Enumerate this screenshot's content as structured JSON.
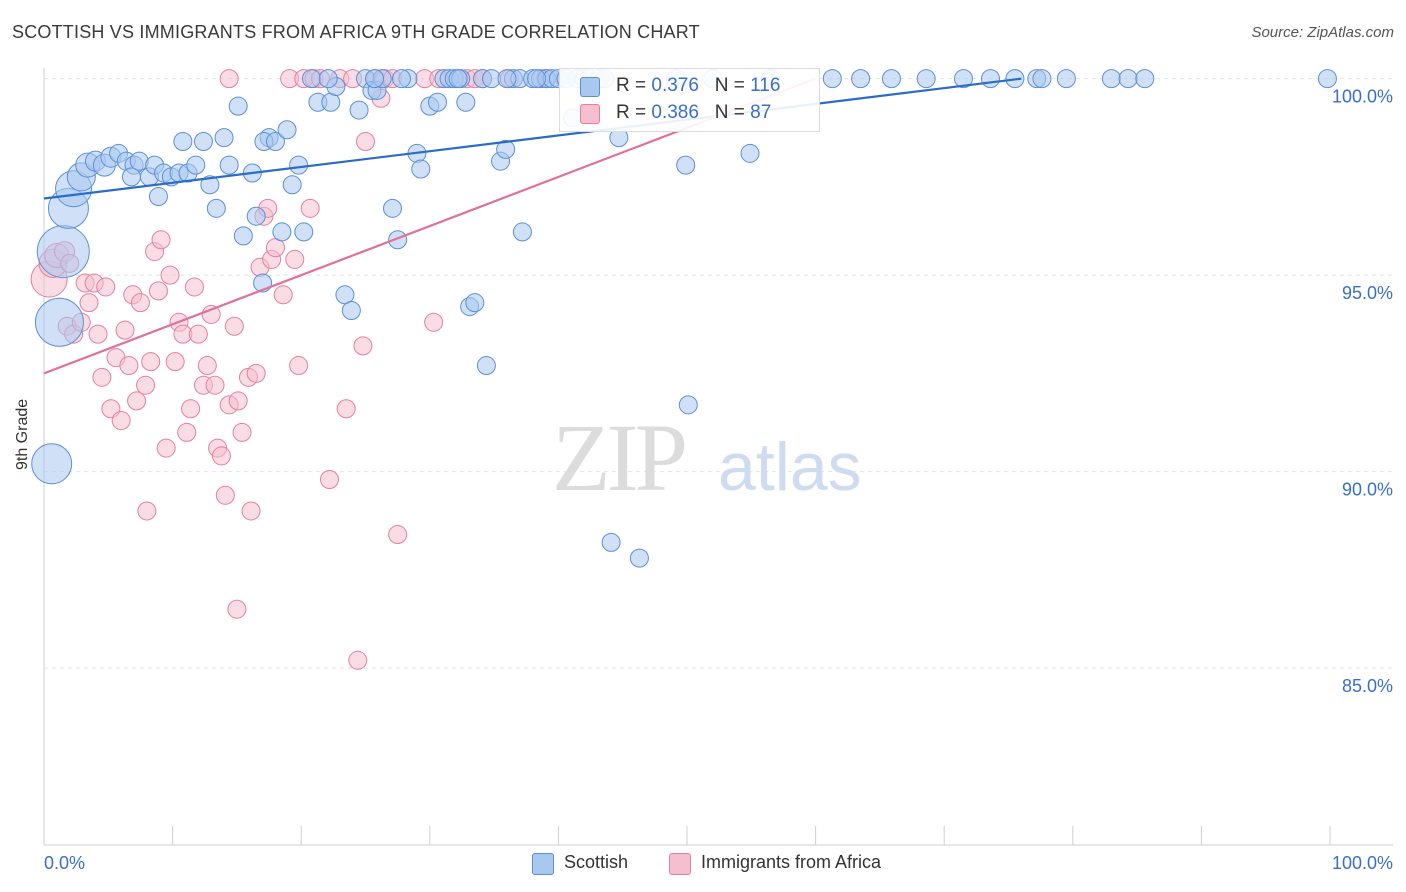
{
  "title": "SCOTTISH VS IMMIGRANTS FROM AFRICA 9TH GRADE CORRELATION CHART",
  "source": "Source: ZipAtlas.com",
  "watermark": {
    "zip": "ZIP",
    "atlas": "atlas"
  },
  "colors": {
    "scottish_fill": "#a9c8f0",
    "scottish_stroke": "#5b8fd6",
    "scottish_line": "#2a6cc9",
    "africa_fill": "#f6bfd0",
    "africa_stroke": "#e37fa1",
    "africa_line": "#e0719a",
    "tick_text": "#3a6fc8",
    "grid": "#e2e2e2"
  },
  "legend": {
    "rows": [
      {
        "r_label": "R = ",
        "r_value": "0.376",
        "n_label": "N = ",
        "n_value": "116"
      },
      {
        "r_label": "R = ",
        "r_value": "0.386",
        "n_label": "N = ",
        "n_value": "87"
      }
    ]
  },
  "bottom_legend": [
    "Scottish",
    "Immigrants from Africa"
  ],
  "chart_data": {
    "type": "scatter",
    "title": "SCOTTISH VS IMMIGRANTS FROM AFRICA 9TH GRADE CORRELATION CHART",
    "xlabel": "",
    "ylabel": "9th Grade",
    "xlim": [
      0,
      100
    ],
    "ylim": [
      80.5,
      100.5
    ],
    "x_tick_labels": [
      "0.0%",
      "100.0%"
    ],
    "y_ticks": [
      {
        "value": 100,
        "label": "100.0%"
      },
      {
        "value": 95,
        "label": "95.0%"
      },
      {
        "value": 90,
        "label": "90.0%"
      },
      {
        "value": 85,
        "label": "85.0%"
      }
    ],
    "grid": true,
    "legend_position": "top-center",
    "series": [
      {
        "name": "Scottish",
        "R": 0.376,
        "N": 116,
        "trend": {
          "x": [
            0,
            76
          ],
          "y": [
            96.95,
            100.0
          ]
        },
        "points": [
          [
            0.6,
            90.2,
            20
          ],
          [
            1.2,
            93.8,
            24
          ],
          [
            1.5,
            95.6,
            26
          ],
          [
            1.9,
            96.7,
            20
          ],
          [
            2.3,
            97.2,
            18
          ],
          [
            2.9,
            97.5,
            14
          ],
          [
            3.4,
            97.8,
            12
          ],
          [
            4.0,
            97.9,
            10
          ],
          [
            4.7,
            97.8,
            11
          ],
          [
            5.2,
            98.0,
            10
          ],
          [
            5.8,
            98.1,
            9
          ],
          [
            6.4,
            97.9,
            9
          ],
          [
            7.0,
            97.8,
            9
          ],
          [
            6.8,
            97.5,
            9
          ],
          [
            7.4,
            97.9,
            9
          ],
          [
            8.2,
            97.5,
            9
          ],
          [
            8.6,
            97.8,
            9
          ],
          [
            9.3,
            97.6,
            9
          ],
          [
            8.9,
            97.0,
            9
          ],
          [
            9.9,
            97.5,
            9
          ],
          [
            10.5,
            97.6,
            9
          ],
          [
            11.2,
            97.6,
            9
          ],
          [
            11.8,
            97.8,
            9
          ],
          [
            10.8,
            98.4,
            9
          ],
          [
            12.4,
            98.4,
            9
          ],
          [
            12.9,
            97.3,
            9
          ],
          [
            13.4,
            96.7,
            9
          ],
          [
            14.0,
            98.5,
            9
          ],
          [
            14.4,
            97.8,
            9
          ],
          [
            15.5,
            96.0,
            9
          ],
          [
            15.1,
            99.3,
            9
          ],
          [
            16.2,
            97.6,
            9
          ],
          [
            16.5,
            96.5,
            9
          ],
          [
            17.5,
            98.5,
            9
          ],
          [
            17.1,
            98.4,
            9
          ],
          [
            17.0,
            94.8,
            9
          ],
          [
            18.0,
            98.4,
            9
          ],
          [
            18.5,
            96.1,
            9
          ],
          [
            18.9,
            98.7,
            9
          ],
          [
            19.3,
            97.3,
            9
          ],
          [
            19.8,
            97.8,
            9
          ],
          [
            20.2,
            96.1,
            9
          ],
          [
            20.8,
            100.0,
            9
          ],
          [
            21.3,
            99.4,
            9
          ],
          [
            22.3,
            99.4,
            9
          ],
          [
            22.7,
            99.8,
            9
          ],
          [
            22.1,
            100.0,
            9
          ],
          [
            23.4,
            94.5,
            9
          ],
          [
            23.9,
            94.1,
            9
          ],
          [
            24.5,
            99.2,
            9
          ],
          [
            25.0,
            100.0,
            9
          ],
          [
            25.5,
            99.7,
            9
          ],
          [
            25.9,
            99.7,
            9
          ],
          [
            26.3,
            100.0,
            9
          ],
          [
            25.7,
            100.0,
            9
          ],
          [
            27.1,
            96.7,
            9
          ],
          [
            27.5,
            95.9,
            9
          ],
          [
            28.3,
            100.0,
            9
          ],
          [
            29.0,
            98.1,
            9
          ],
          [
            29.3,
            97.7,
            9
          ],
          [
            30.0,
            99.3,
            9
          ],
          [
            30.6,
            99.4,
            9
          ],
          [
            31.1,
            100.0,
            9
          ],
          [
            31.5,
            100.0,
            9
          ],
          [
            31.9,
            100.0,
            9
          ],
          [
            32.4,
            100.0,
            9
          ],
          [
            32.8,
            99.4,
            9
          ],
          [
            32.2,
            100.0,
            9
          ],
          [
            33.1,
            94.2,
            9
          ],
          [
            33.5,
            94.3,
            9
          ],
          [
            34.1,
            100.0,
            9
          ],
          [
            34.4,
            92.7,
            9
          ],
          [
            34.8,
            100.0,
            9
          ],
          [
            35.5,
            97.9,
            9
          ],
          [
            35.9,
            98.2,
            9
          ],
          [
            36.5,
            100.0,
            9
          ],
          [
            37.0,
            100.0,
            9
          ],
          [
            37.2,
            96.1,
            9
          ],
          [
            38.0,
            100.0,
            9
          ],
          [
            38.6,
            100.0,
            9
          ],
          [
            39.1,
            100.0,
            9
          ],
          [
            39.5,
            100.0,
            9
          ],
          [
            40.0,
            100.0,
            9
          ],
          [
            40.6,
            100.0,
            9
          ],
          [
            38.3,
            100.0,
            9
          ],
          [
            41.1,
            99.0,
            9
          ],
          [
            41.5,
            100.0,
            9
          ],
          [
            42.0,
            100.0,
            9
          ],
          [
            42.4,
            100.0,
            9
          ],
          [
            43.2,
            100.0,
            9
          ],
          [
            44.1,
            88.2,
            9
          ],
          [
            46.3,
            87.8,
            9
          ],
          [
            44.7,
            98.5,
            9
          ],
          [
            49.1,
            100.0,
            9
          ],
          [
            49.9,
            97.8,
            9
          ],
          [
            50.1,
            91.7,
            9
          ],
          [
            52.0,
            100.0,
            9
          ],
          [
            54.9,
            98.1,
            9
          ],
          [
            56.5,
            100.0,
            9
          ],
          [
            61.3,
            100.0,
            9
          ],
          [
            63.5,
            100.0,
            9
          ],
          [
            65.9,
            100.0,
            9
          ],
          [
            68.6,
            100.0,
            9
          ],
          [
            71.5,
            100.0,
            9
          ],
          [
            73.6,
            100.0,
            9
          ],
          [
            75.5,
            100.0,
            9
          ],
          [
            77.2,
            100.0,
            9
          ],
          [
            77.6,
            100.0,
            9
          ],
          [
            79.5,
            100.0,
            9
          ],
          [
            83.0,
            100.0,
            9
          ],
          [
            84.3,
            100.0,
            9
          ],
          [
            85.6,
            100.0,
            9
          ],
          [
            99.8,
            100.0,
            9
          ],
          [
            27.8,
            100.0,
            9
          ],
          [
            36.0,
            100.0,
            9
          ],
          [
            43.6,
            100.0,
            9
          ]
        ]
      },
      {
        "name": "Immigrants from Africa",
        "R": 0.386,
        "N": 87,
        "trend": {
          "x": [
            0,
            60
          ],
          "y": [
            92.5,
            100.0
          ]
        },
        "points": [
          [
            0.4,
            94.9,
            18
          ],
          [
            0.7,
            95.3,
            14
          ],
          [
            1.0,
            95.5,
            12
          ],
          [
            1.6,
            95.6,
            10
          ],
          [
            2.0,
            95.3,
            9
          ],
          [
            1.8,
            93.7,
            9
          ],
          [
            2.3,
            93.5,
            9
          ],
          [
            2.9,
            93.8,
            9
          ],
          [
            3.2,
            94.8,
            9
          ],
          [
            3.5,
            94.3,
            9
          ],
          [
            3.9,
            94.8,
            9
          ],
          [
            4.2,
            93.5,
            9
          ],
          [
            4.5,
            92.4,
            9
          ],
          [
            4.8,
            94.7,
            9
          ],
          [
            5.2,
            91.6,
            9
          ],
          [
            5.6,
            92.9,
            9
          ],
          [
            6.0,
            91.3,
            9
          ],
          [
            6.3,
            93.6,
            9
          ],
          [
            6.6,
            92.7,
            9
          ],
          [
            6.9,
            94.5,
            9
          ],
          [
            7.2,
            91.8,
            9
          ],
          [
            7.5,
            94.3,
            9
          ],
          [
            7.9,
            92.2,
            9
          ],
          [
            8.3,
            92.8,
            9
          ],
          [
            8.6,
            95.6,
            9
          ],
          [
            8.0,
            89.0,
            9
          ],
          [
            8.9,
            94.6,
            9
          ],
          [
            9.1,
            95.9,
            9
          ],
          [
            9.5,
            90.6,
            9
          ],
          [
            9.8,
            95.0,
            9
          ],
          [
            10.2,
            92.8,
            9
          ],
          [
            10.5,
            93.8,
            9
          ],
          [
            10.8,
            93.5,
            9
          ],
          [
            11.1,
            91.0,
            9
          ],
          [
            11.4,
            91.6,
            9
          ],
          [
            11.7,
            94.7,
            9
          ],
          [
            12.0,
            93.5,
            9
          ],
          [
            12.4,
            92.2,
            9
          ],
          [
            12.7,
            92.7,
            9
          ],
          [
            13.0,
            94.0,
            9
          ],
          [
            13.3,
            92.2,
            9
          ],
          [
            13.5,
            90.6,
            9
          ],
          [
            13.8,
            90.4,
            9
          ],
          [
            14.1,
            89.4,
            9
          ],
          [
            14.4,
            91.7,
            9
          ],
          [
            14.8,
            93.7,
            9
          ],
          [
            15.1,
            91.8,
            9
          ],
          [
            15.4,
            91.0,
            9
          ],
          [
            15.0,
            86.5,
            9
          ],
          [
            15.9,
            92.4,
            9
          ],
          [
            16.1,
            89.0,
            9
          ],
          [
            16.5,
            92.5,
            9
          ],
          [
            16.8,
            95.2,
            9
          ],
          [
            17.1,
            96.5,
            9
          ],
          [
            17.4,
            96.7,
            9
          ],
          [
            17.7,
            95.4,
            9
          ],
          [
            18.0,
            95.7,
            9
          ],
          [
            18.6,
            94.5,
            9
          ],
          [
            19.1,
            100.0,
            9
          ],
          [
            19.5,
            95.4,
            9
          ],
          [
            19.8,
            92.7,
            9
          ],
          [
            20.2,
            100.0,
            9
          ],
          [
            20.7,
            96.7,
            9
          ],
          [
            21.0,
            100.0,
            9
          ],
          [
            21.5,
            100.0,
            9
          ],
          [
            22.2,
            89.8,
            9
          ],
          [
            23.0,
            100.0,
            9
          ],
          [
            23.5,
            91.6,
            9
          ],
          [
            24.0,
            100.0,
            9
          ],
          [
            24.4,
            85.2,
            9
          ],
          [
            24.8,
            93.2,
            9
          ],
          [
            25.0,
            98.4,
            9
          ],
          [
            25.8,
            100.0,
            9
          ],
          [
            26.5,
            100.0,
            9
          ],
          [
            27.1,
            100.0,
            9
          ],
          [
            26.2,
            99.5,
            9
          ],
          [
            27.5,
            88.4,
            9
          ],
          [
            29.6,
            100.0,
            9
          ],
          [
            30.7,
            100.0,
            9
          ],
          [
            30.3,
            93.8,
            9
          ],
          [
            32.9,
            100.0,
            9
          ],
          [
            33.5,
            100.0,
            9
          ],
          [
            34.1,
            100.0,
            9
          ],
          [
            39.0,
            100.0,
            9
          ],
          [
            40.5,
            100.0,
            9
          ],
          [
            14.4,
            100.0,
            9
          ],
          [
            36.2,
            100.0,
            9
          ]
        ]
      }
    ]
  }
}
